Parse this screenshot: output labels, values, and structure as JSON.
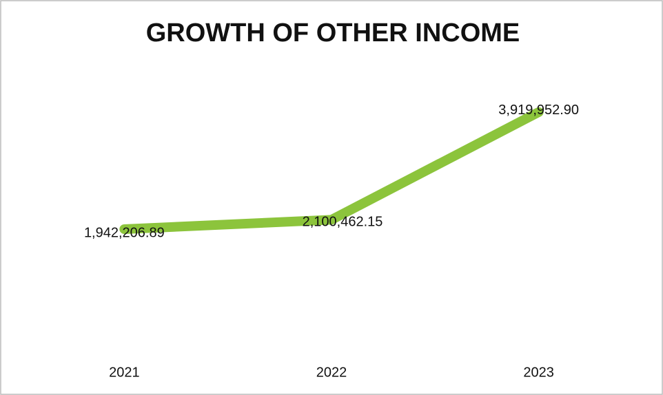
{
  "chart_data": {
    "type": "line",
    "title": "GROWTH OF OTHER INCOME",
    "categories": [
      "2021",
      "2022",
      "2023"
    ],
    "series": [
      {
        "name": "Other Income",
        "color": "#8cc43c",
        "values": [
          1942206.89,
          2100462.15,
          3919952.9
        ],
        "value_labels": [
          "1,942,206.89",
          "2,100,462.15",
          "3,919,952.90"
        ]
      }
    ],
    "ylim": [
      0,
      4500000
    ]
  }
}
